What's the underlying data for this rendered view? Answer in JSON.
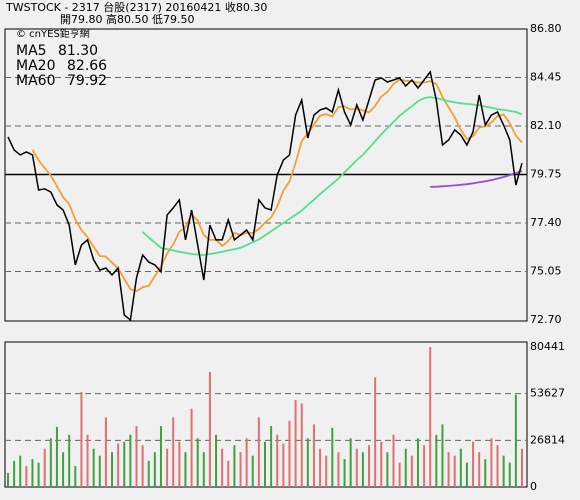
{
  "header": [
    "TWSTOCK  -  2317  台股(2317) 20160421   收80.30",
    "開79.80    高80.50    低79.50"
  ],
  "source": "© cnYES鉅亨網",
  "chart_data": [
    {
      "type": "line",
      "ylim": [
        72.7,
        86.8
      ],
      "yticks": [
        {
          "value": 72.7,
          "label": "72.70"
        },
        {
          "value": 75.05,
          "label": "75.05"
        },
        {
          "value": 77.4,
          "label": "77.40"
        },
        {
          "value": 79.75,
          "label": "79.75"
        },
        {
          "value": 82.1,
          "label": "82.10"
        },
        {
          "value": 84.45,
          "label": "84.45"
        },
        {
          "value": 86.8,
          "label": "86.80"
        }
      ],
      "reference_line": 79.75,
      "grid": true,
      "series": [
        {
          "name": "Price",
          "color": "#000000",
          "values": [
            81.57,
            80.94,
            80.7,
            80.84,
            80.7,
            79.0,
            79.05,
            78.9,
            78.27,
            78.03,
            77.3,
            75.37,
            76.33,
            76.58,
            75.61,
            75.12,
            75.22,
            74.88,
            75.22,
            72.94,
            72.7,
            74.74,
            75.85,
            75.51,
            75.37,
            75.03,
            77.79,
            78.13,
            78.52,
            76.58,
            78.03,
            76.33,
            74.64,
            77.3,
            76.58,
            76.58,
            77.55,
            76.58,
            76.82,
            77.06,
            76.58,
            78.52,
            78.13,
            78.03,
            79.73,
            80.45,
            80.7,
            82.63,
            83.36,
            81.52,
            82.63,
            82.88,
            82.97,
            82.78,
            83.84,
            82.78,
            82.15,
            83.12,
            82.39,
            83.36,
            84.33,
            84.43,
            84.23,
            84.33,
            84.43,
            84.04,
            84.33,
            83.94,
            84.33,
            84.72,
            83.36,
            81.18,
            81.42,
            81.91,
            81.66,
            81.18,
            81.81,
            83.6,
            82.15,
            82.63,
            82.78,
            82.15,
            81.42,
            79.24,
            80.3
          ]
        },
        {
          "name": "MA5",
          "color": "#f5a030",
          "legend_value": {
            "value": 81.3,
            "label": "81.30"
          },
          "values": [
            null,
            null,
            null,
            null,
            80.95,
            80.44,
            80.06,
            79.7,
            79.18,
            78.65,
            78.31,
            77.57,
            77.06,
            76.72,
            76.24,
            75.8,
            75.77,
            75.48,
            75.21,
            74.68,
            74.19,
            74.1,
            74.29,
            74.35,
            74.83,
            75.3,
            75.91,
            76.37,
            76.97,
            77.21,
            77.81,
            77.52,
            76.82,
            76.58,
            76.58,
            76.29,
            76.53,
            76.92,
            76.82,
            76.92,
            76.92,
            77.11,
            77.42,
            77.66,
            78.2,
            78.97,
            79.41,
            80.31,
            81.37,
            81.73,
            82.17,
            82.6,
            82.67,
            82.56,
            83.02,
            83.05,
            82.9,
            82.93,
            82.86,
            82.76,
            83.07,
            83.53,
            83.75,
            84.14,
            84.35,
            84.29,
            84.27,
            84.21,
            84.21,
            84.27,
            84.14,
            83.51,
            83.0,
            82.52,
            81.91,
            81.47,
            81.6,
            82.03,
            82.08,
            82.27,
            82.59,
            82.66,
            82.23,
            81.64,
            81.3
          ]
        },
        {
          "name": "MA20",
          "color": "#50e090",
          "legend_value": {
            "value": 82.66,
            "label": "82.66"
          },
          "values": [
            null,
            null,
            null,
            null,
            null,
            null,
            null,
            null,
            null,
            null,
            null,
            null,
            null,
            null,
            null,
            null,
            null,
            null,
            null,
            null,
            null,
            null,
            76.97,
            76.7,
            76.45,
            76.2,
            76.13,
            76.07,
            76.0,
            75.95,
            75.9,
            75.87,
            75.85,
            75.9,
            75.95,
            76.0,
            76.07,
            76.13,
            76.2,
            76.33,
            76.47,
            76.6,
            76.8,
            77.0,
            77.2,
            77.4,
            77.6,
            77.8,
            78.0,
            78.27,
            78.53,
            78.8,
            79.05,
            79.3,
            79.55,
            79.85,
            80.15,
            80.45,
            80.7,
            81.03,
            81.37,
            81.7,
            82.0,
            82.3,
            82.6,
            82.83,
            83.06,
            83.3,
            83.45,
            83.5,
            83.45,
            83.38,
            83.3,
            83.25,
            83.2,
            83.17,
            83.14,
            83.1,
            83.04,
            82.98,
            82.92,
            82.88,
            82.83,
            82.78,
            82.66
          ]
        },
        {
          "name": "MA60",
          "color": "#9050d0",
          "legend_value": {
            "value": 79.92,
            "label": "79.92"
          },
          "values": [
            null,
            null,
            null,
            null,
            null,
            null,
            null,
            null,
            null,
            null,
            null,
            null,
            null,
            null,
            null,
            null,
            null,
            null,
            null,
            null,
            null,
            null,
            null,
            null,
            null,
            null,
            null,
            null,
            null,
            null,
            null,
            null,
            null,
            null,
            null,
            null,
            null,
            null,
            null,
            null,
            null,
            null,
            null,
            null,
            null,
            null,
            null,
            null,
            null,
            null,
            null,
            null,
            null,
            null,
            null,
            null,
            null,
            null,
            null,
            null,
            null,
            null,
            null,
            null,
            null,
            null,
            null,
            null,
            null,
            79.15,
            79.16,
            79.18,
            79.2,
            79.22,
            79.25,
            79.28,
            79.32,
            79.37,
            79.42,
            79.48,
            79.55,
            79.63,
            79.72,
            79.82,
            79.92
          ]
        }
      ]
    },
    {
      "type": "bar",
      "ylim": [
        0,
        80441
      ],
      "yticks": [
        0,
        26814,
        53627,
        80441
      ],
      "grid": true,
      "up_color": "#e07070",
      "down_color": "#40a040",
      "values": [
        8000,
        15000,
        18000,
        12000,
        16000,
        14000,
        22000,
        28000,
        34500,
        20000,
        30000,
        12000,
        54600,
        30000,
        22000,
        18000,
        40000,
        20000,
        25000,
        26000,
        30000,
        35000,
        24000,
        15000,
        20000,
        35000,
        22000,
        40000,
        26000,
        20000,
        45000,
        28000,
        20000,
        66000,
        30000,
        22000,
        15000,
        24000,
        20000,
        28000,
        18000,
        40000,
        26000,
        35000,
        30000,
        25000,
        38000,
        50000,
        48000,
        28000,
        36000,
        22000,
        18000,
        34000,
        20000,
        16000,
        28000,
        22000,
        20000,
        24000,
        63000,
        26000,
        20000,
        30000,
        14000,
        22000,
        18000,
        28000,
        24000,
        80441,
        30000,
        36000,
        20000,
        18000,
        22000,
        14000,
        26000,
        20000,
        16000,
        28000,
        24000,
        18000,
        14000,
        53000,
        22000
      ]
    }
  ]
}
